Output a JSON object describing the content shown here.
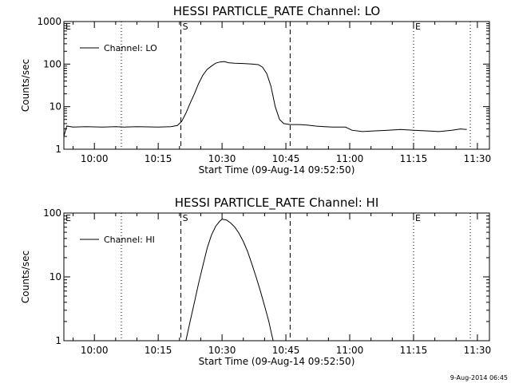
{
  "footer": {
    "date_stamp": "9-Aug-2014 06:45"
  },
  "chart_data": [
    {
      "type": "line",
      "title": "HESSI PARTICLE_RATE Channel: LO",
      "xlabel": "Start Time (09-Aug-14 09:52:50)",
      "ylabel": "Counts/sec",
      "y_scale": "log",
      "ylim": [
        1,
        1000
      ],
      "y_ticks": [
        1,
        10,
        100,
        1000
      ],
      "y_tick_labels": [
        "1",
        "10",
        "100",
        "1000"
      ],
      "xlim": [
        "09:52:50",
        "11:32:50"
      ],
      "x_ticks": [
        "10:00",
        "10:15",
        "10:30",
        "10:45",
        "11:00",
        "11:15",
        "11:30"
      ],
      "legend": {
        "position": "top-left",
        "entries": [
          "Channel: LO"
        ]
      },
      "markers": [
        {
          "label": "E",
          "time": "09:52:50",
          "style": "dotted"
        },
        {
          "label": "",
          "time": "10:06:20",
          "style": "dotted"
        },
        {
          "label": "S",
          "time": "10:20:20",
          "style": "dashed"
        },
        {
          "label": "",
          "time": "10:46:00",
          "style": "dashed"
        },
        {
          "label": "E",
          "time": "11:15:00",
          "style": "dotted"
        },
        {
          "label": "",
          "time": "11:28:20",
          "style": "dotted"
        }
      ],
      "series": [
        {
          "name": "Channel: LO",
          "points": [
            [
              "09:52:50",
              2.0
            ],
            [
              "09:53:30",
              3.5
            ],
            [
              "09:55:00",
              3.3
            ],
            [
              "09:58:00",
              3.4
            ],
            [
              "10:02:00",
              3.3
            ],
            [
              "10:05:00",
              3.4
            ],
            [
              "10:07:00",
              3.3
            ],
            [
              "10:10:00",
              3.4
            ],
            [
              "10:15:00",
              3.3
            ],
            [
              "10:18:00",
              3.4
            ],
            [
              "10:19:30",
              3.6
            ],
            [
              "10:20:30",
              4.5
            ],
            [
              "10:21:30",
              7
            ],
            [
              "10:22:30",
              12
            ],
            [
              "10:23:30",
              20
            ],
            [
              "10:24:30",
              35
            ],
            [
              "10:25:30",
              55
            ],
            [
              "10:26:30",
              75
            ],
            [
              "10:27:30",
              90
            ],
            [
              "10:28:30",
              105
            ],
            [
              "10:29:30",
              112
            ],
            [
              "10:30:30",
              115
            ],
            [
              "10:31:30",
              108
            ],
            [
              "10:33:00",
              105
            ],
            [
              "10:35:00",
              103
            ],
            [
              "10:37:00",
              100
            ],
            [
              "10:38:30",
              97
            ],
            [
              "10:39:30",
              85
            ],
            [
              "10:40:30",
              60
            ],
            [
              "10:41:30",
              30
            ],
            [
              "10:42:30",
              10
            ],
            [
              "10:43:30",
              5
            ],
            [
              "10:44:30",
              4.0
            ],
            [
              "10:46:00",
              3.8
            ],
            [
              "10:48:00",
              3.8
            ],
            [
              "10:50:00",
              3.7
            ],
            [
              "10:52:00",
              3.5
            ],
            [
              "10:54:00",
              3.4
            ],
            [
              "10:56:00",
              3.3
            ],
            [
              "10:59:00",
              3.3
            ],
            [
              "11:00:30",
              2.8
            ],
            [
              "11:03:00",
              2.6
            ],
            [
              "11:06:00",
              2.7
            ],
            [
              "11:09:00",
              2.8
            ],
            [
              "11:12:00",
              2.9
            ],
            [
              "11:15:00",
              2.8
            ],
            [
              "11:18:00",
              2.7
            ],
            [
              "11:21:00",
              2.6
            ],
            [
              "11:24:00",
              2.8
            ],
            [
              "11:26:00",
              3.0
            ],
            [
              "11:27:30",
              2.9
            ]
          ]
        }
      ]
    },
    {
      "type": "line",
      "title": "HESSI PARTICLE_RATE Channel: HI",
      "xlabel": "Start Time (09-Aug-14 09:52:50)",
      "ylabel": "Counts/sec",
      "y_scale": "log",
      "ylim": [
        1,
        100
      ],
      "y_ticks": [
        1,
        10,
        100
      ],
      "y_tick_labels": [
        "1",
        "10",
        "100"
      ],
      "xlim": [
        "09:52:50",
        "11:32:50"
      ],
      "x_ticks": [
        "10:00",
        "10:15",
        "10:30",
        "10:45",
        "11:00",
        "11:15",
        "11:30"
      ],
      "legend": {
        "position": "top-left",
        "entries": [
          "Channel: HI"
        ]
      },
      "markers": [
        {
          "label": "E",
          "time": "09:52:50",
          "style": "dotted"
        },
        {
          "label": "",
          "time": "10:06:20",
          "style": "dotted"
        },
        {
          "label": "S",
          "time": "10:20:20",
          "style": "dashed"
        },
        {
          "label": "",
          "time": "10:46:00",
          "style": "dashed"
        },
        {
          "label": "E",
          "time": "11:15:00",
          "style": "dotted"
        },
        {
          "label": "",
          "time": "11:28:20",
          "style": "dotted"
        }
      ],
      "series": [
        {
          "name": "Channel: HI",
          "points": [
            [
              "10:21:30",
              1.0
            ],
            [
              "10:22:30",
              2.0
            ],
            [
              "10:23:30",
              4.0
            ],
            [
              "10:24:30",
              8
            ],
            [
              "10:25:30",
              15
            ],
            [
              "10:26:30",
              28
            ],
            [
              "10:27:30",
              45
            ],
            [
              "10:28:30",
              62
            ],
            [
              "10:29:30",
              75
            ],
            [
              "10:30:00",
              80
            ],
            [
              "10:31:00",
              78
            ],
            [
              "10:32:00",
              70
            ],
            [
              "10:33:00",
              60
            ],
            [
              "10:34:00",
              48
            ],
            [
              "10:35:00",
              36
            ],
            [
              "10:36:00",
              25
            ],
            [
              "10:37:00",
              16
            ],
            [
              "10:38:00",
              10
            ],
            [
              "10:39:00",
              6
            ],
            [
              "10:40:00",
              3.5
            ],
            [
              "10:41:00",
              2.0
            ],
            [
              "10:41:30",
              1.4
            ],
            [
              "10:42:00",
              1.0
            ]
          ]
        }
      ]
    }
  ]
}
